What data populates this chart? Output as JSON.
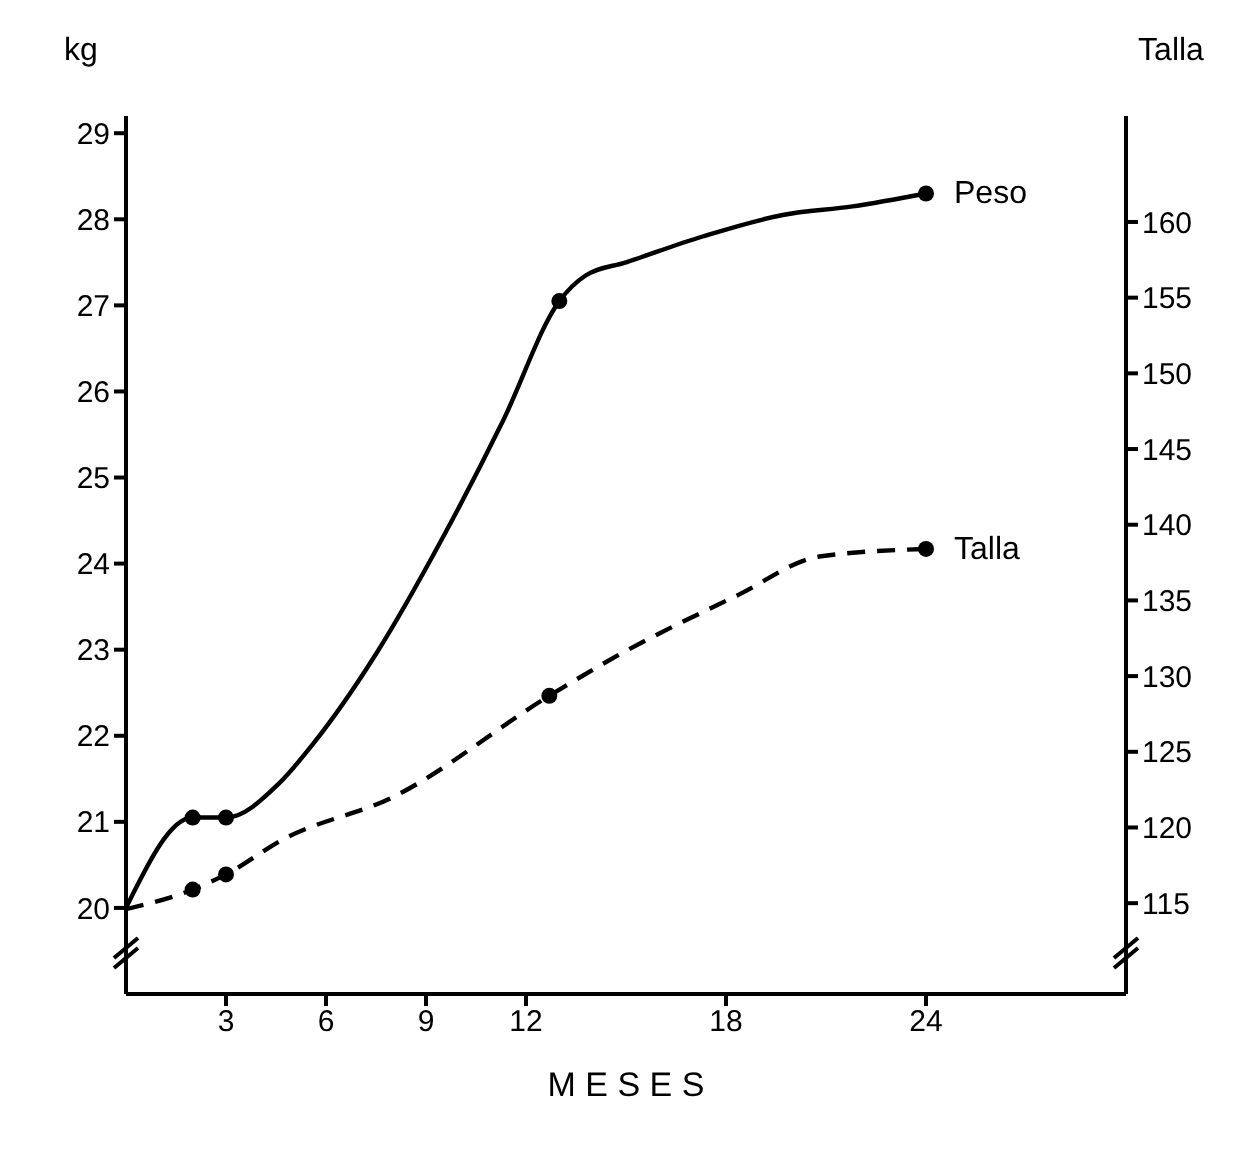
{
  "chart_data": {
    "type": "line",
    "xlabel": "M E S E S",
    "ylabel": "kg",
    "y2label": "Talla",
    "xlim": [
      0,
      30
    ],
    "xticks": [
      3,
      6,
      9,
      12,
      18,
      24
    ],
    "ylim": [
      19,
      29.2
    ],
    "yticks": [
      20,
      21,
      22,
      23,
      24,
      25,
      26,
      27,
      28,
      29
    ],
    "y2lim": [
      109,
      167
    ],
    "y2ticks": [
      115,
      120,
      125,
      130,
      135,
      140,
      145,
      150,
      155,
      160
    ],
    "legend": false,
    "grid": false,
    "series": [
      {
        "name": "Peso",
        "color": "#000000",
        "line_style": "solid",
        "marker": "none",
        "x": [
          0,
          2,
          3,
          4.6,
          5.6,
          7.5,
          9.5,
          11.3,
          13,
          13.8,
          15,
          17.3,
          19.7,
          21.8,
          24
        ],
        "values": [
          20,
          21.05,
          21.05,
          21.45,
          21.9,
          22.95,
          24.3,
          25.65,
          27.05,
          27.35,
          27.5,
          27.8,
          28.05,
          28.15,
          28.3
        ]
      },
      {
        "type": "scatter",
        "color": "#000000",
        "marker": "circle",
        "x": [
          2,
          3,
          13,
          24
        ],
        "values": [
          21.05,
          21.05,
          27.05,
          28.3
        ]
      },
      {
        "name": "Talla",
        "axis": "y2",
        "color": "#000000",
        "line_style": "dashed",
        "marker": "none",
        "x": [
          0,
          2,
          3,
          4.7,
          8,
          12.7,
          14.7,
          18.4,
          20.8,
          24
        ],
        "values": [
          114.6,
          115.9,
          116.9,
          119.2,
          122,
          128.7,
          131.3,
          135.4,
          137.9,
          138.4
        ]
      },
      {
        "type": "scatter",
        "axis": "y2",
        "color": "#000000",
        "marker": "circle",
        "x": [
          2,
          3,
          12.7,
          24
        ],
        "values": [
          115.9,
          116.9,
          128.7,
          138.4
        ]
      }
    ]
  }
}
